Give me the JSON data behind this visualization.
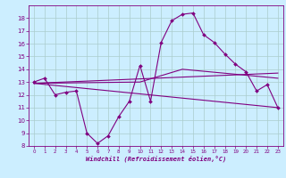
{
  "title": "",
  "xlabel": "Windchill (Refroidissement éolien,°C)",
  "bg_color": "#cceeff",
  "line_color": "#800080",
  "grid_color": "#aacccc",
  "xlim": [
    -0.5,
    23.5
  ],
  "ylim": [
    8,
    19
  ],
  "yticks": [
    8,
    9,
    10,
    11,
    12,
    13,
    14,
    15,
    16,
    17,
    18
  ],
  "xticks": [
    0,
    1,
    2,
    3,
    4,
    5,
    6,
    7,
    8,
    9,
    10,
    11,
    12,
    13,
    14,
    15,
    16,
    17,
    18,
    19,
    20,
    21,
    22,
    23
  ],
  "series1_x": [
    0,
    1,
    2,
    3,
    4,
    5,
    6,
    7,
    8,
    9,
    10,
    11,
    12,
    13,
    14,
    15,
    16,
    17,
    18,
    19,
    20,
    21,
    22,
    23
  ],
  "series1_y": [
    13.0,
    13.3,
    12.0,
    12.2,
    12.3,
    9.0,
    8.2,
    8.8,
    10.3,
    11.5,
    14.3,
    11.5,
    16.1,
    17.8,
    18.3,
    18.4,
    16.7,
    16.1,
    15.2,
    14.4,
    13.8,
    12.3,
    12.8,
    11.0
  ],
  "series2_x": [
    0,
    23
  ],
  "series2_y": [
    12.9,
    11.0
  ],
  "series3_x": [
    0,
    23
  ],
  "series3_y": [
    12.9,
    13.7
  ],
  "series4_x": [
    0,
    10,
    14,
    23
  ],
  "series4_y": [
    12.9,
    13.0,
    14.0,
    13.3
  ]
}
